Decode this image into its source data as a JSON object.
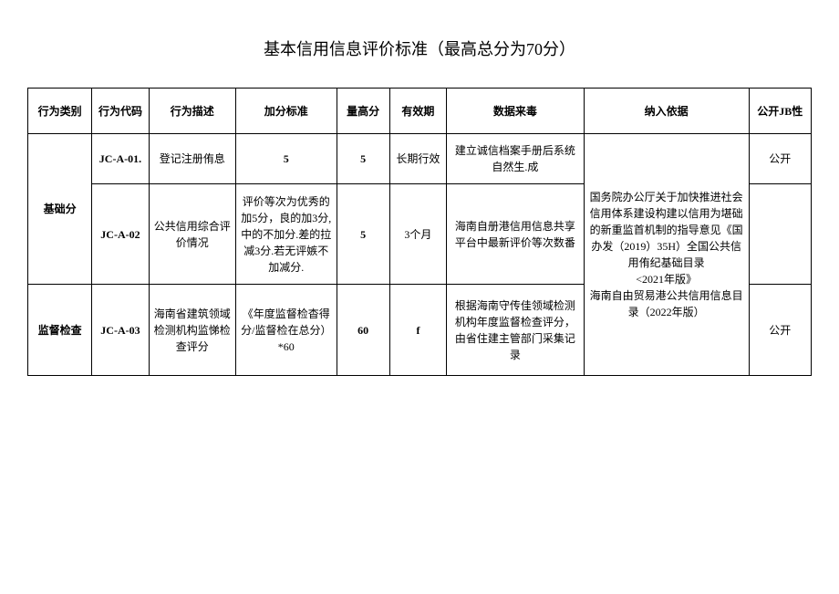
{
  "title": "基本信用信息评价标准（最高总分为70分）",
  "columns": [
    "行为类别",
    "行为代码",
    "行为描述",
    "加分标准",
    "量高分",
    "有效期",
    "数据来毒",
    "纳入依据",
    "公开JB性"
  ],
  "merged": {
    "category1": "基础分",
    "category2": "监督检查",
    "basis_combined": "国务院办公厅关于加快推进社会信用体系建设构建以信用为堪础的新重监首机制的指导意见《国办发（2019）35H）全国公共信用侑纪基础目录\n<2021年版》\n海南自由贸易港公共信用信息目录（2022年版）"
  },
  "rows": [
    {
      "code": "JC-A-01.",
      "desc": "登记注册侑息",
      "std": "5",
      "max": "5",
      "period": "长期行效",
      "source": "建立诚信档案手册后系统自然生.成",
      "public": "公开"
    },
    {
      "code": "JC-A-02",
      "desc": "公共信用综合评价情况",
      "std": "评价等次为优秀的加5分，良的加3分,中的不加分.差的拉减3分.若无评嫉不加减分.",
      "max": "5",
      "period": "3个月",
      "source": "海南自册港信用信息共享平台中最新评价等次数番",
      "public": ""
    },
    {
      "code": "JC-A-03",
      "desc": "海南省建筑领域检测机构监悌检查评分",
      "std": "《年度监督检杳得分/监督检在总分）*60",
      "max": "60",
      "period": "f",
      "source": "根据海南守传佳领域检测机构年度监督检查评分，由省住建主管部门采集记录",
      "public": "公开"
    }
  ],
  "styles": {
    "background": "#ffffff",
    "border_color": "#000000",
    "text_color": "#000000",
    "title_fontsize": 18,
    "cell_fontsize": 12
  }
}
